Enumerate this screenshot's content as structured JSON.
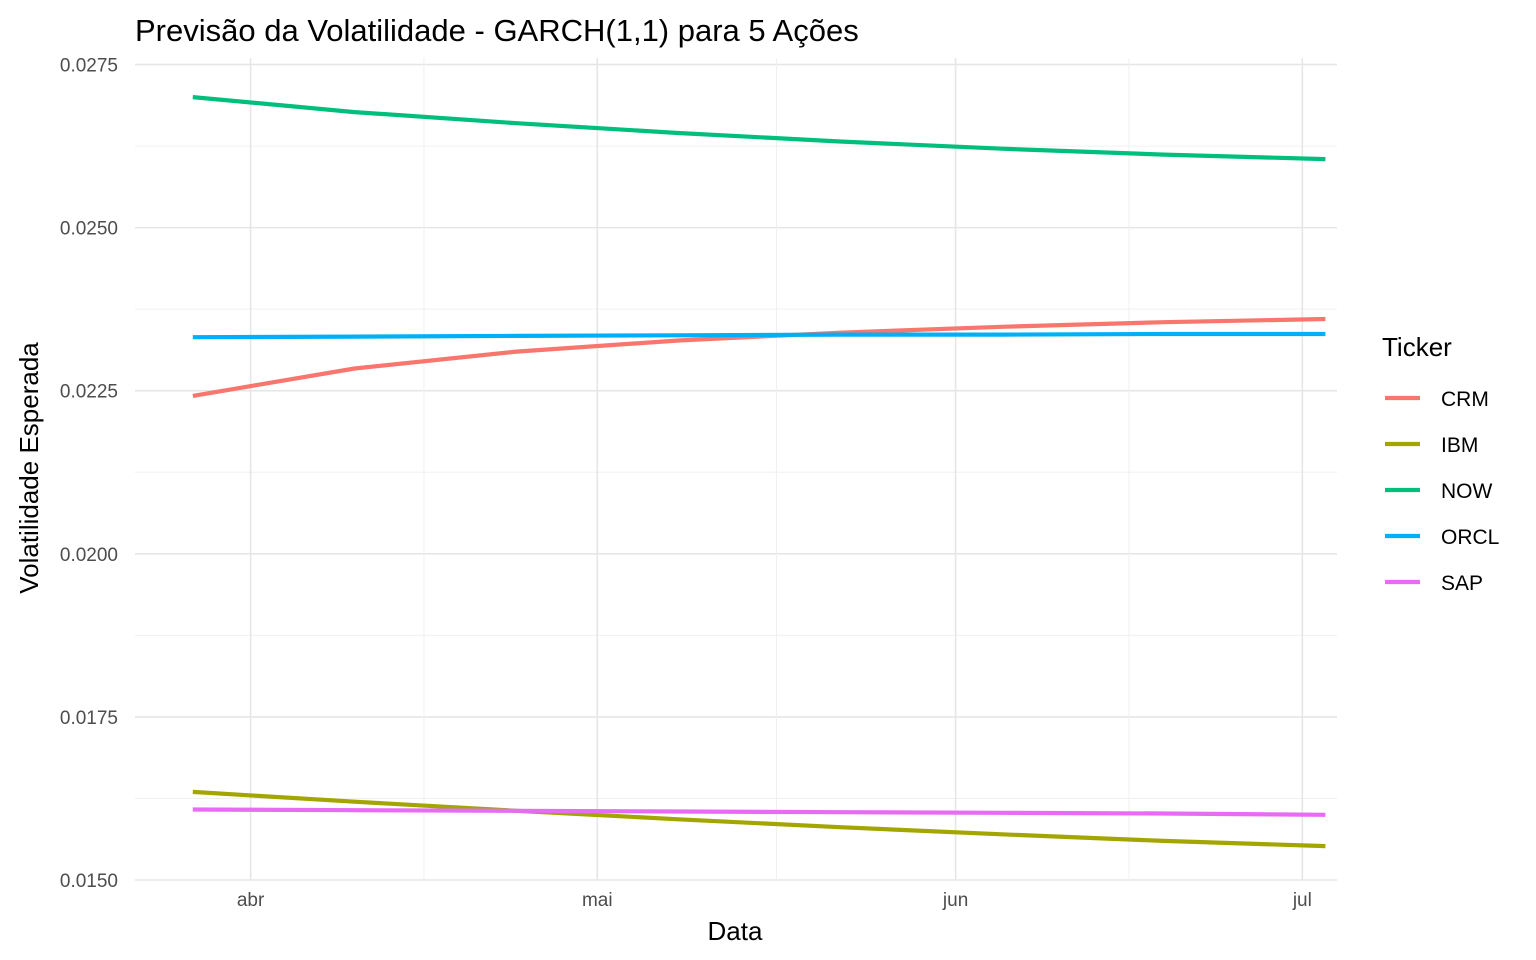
{
  "chart_data": {
    "type": "line",
    "title": "Previsão da Volatilidade - GARCH(1,1) para 5 Ações",
    "xlabel": "Data",
    "ylabel": "Volatilidade Esperada",
    "x_ticks": [
      {
        "label": "abr",
        "date": "2025-04-01"
      },
      {
        "label": "mai",
        "date": "2025-05-01"
      },
      {
        "label": "jun",
        "date": "2025-06-01"
      },
      {
        "label": "jul",
        "date": "2025-07-01"
      }
    ],
    "y_ticks": [
      "0.0150",
      "0.0175",
      "0.0200",
      "0.0225",
      "0.0250",
      "0.0275"
    ],
    "ylim": [
      0.015,
      0.0276
    ],
    "xlim": [
      "2025-03-22",
      "2025-07-04"
    ],
    "grid": true,
    "legend": {
      "title": "Ticker",
      "position": "right"
    },
    "series": [
      {
        "name": "CRM",
        "color": "#F8766D",
        "x": [
          "2025-03-27",
          "2025-04-10",
          "2025-04-24",
          "2025-05-08",
          "2025-05-22",
          "2025-06-05",
          "2025-06-19",
          "2025-07-03"
        ],
        "values": [
          0.02242,
          0.02284,
          0.0231,
          0.02327,
          0.02339,
          0.02348,
          0.02355,
          0.0236
        ]
      },
      {
        "name": "IBM",
        "color": "#A3A500",
        "x": [
          "2025-03-27",
          "2025-04-10",
          "2025-04-24",
          "2025-05-08",
          "2025-05-22",
          "2025-06-05",
          "2025-06-19",
          "2025-07-03"
        ],
        "values": [
          0.01635,
          0.0162,
          0.01606,
          0.01593,
          0.01581,
          0.0157,
          0.0156,
          0.01552
        ]
      },
      {
        "name": "NOW",
        "color": "#00BF7D",
        "x": [
          "2025-03-27",
          "2025-04-10",
          "2025-04-24",
          "2025-05-08",
          "2025-05-22",
          "2025-06-05",
          "2025-06-19",
          "2025-07-03"
        ],
        "values": [
          0.027,
          0.02677,
          0.0266,
          0.02645,
          0.02632,
          0.02621,
          0.02612,
          0.02605
        ]
      },
      {
        "name": "ORCL",
        "color": "#00B0F6",
        "x": [
          "2025-03-27",
          "2025-04-10",
          "2025-04-24",
          "2025-05-08",
          "2025-05-22",
          "2025-06-05",
          "2025-06-19",
          "2025-07-03"
        ],
        "values": [
          0.02332,
          0.02333,
          0.02334,
          0.02335,
          0.02336,
          0.02336,
          0.02337,
          0.02337
        ]
      },
      {
        "name": "SAP",
        "color": "#E76BF3",
        "x": [
          "2025-03-27",
          "2025-04-10",
          "2025-04-24",
          "2025-05-08",
          "2025-05-22",
          "2025-06-05",
          "2025-06-19",
          "2025-07-03"
        ],
        "values": [
          0.01608,
          0.01607,
          0.01606,
          0.01605,
          0.01604,
          0.01603,
          0.01602,
          0.016
        ]
      }
    ]
  }
}
